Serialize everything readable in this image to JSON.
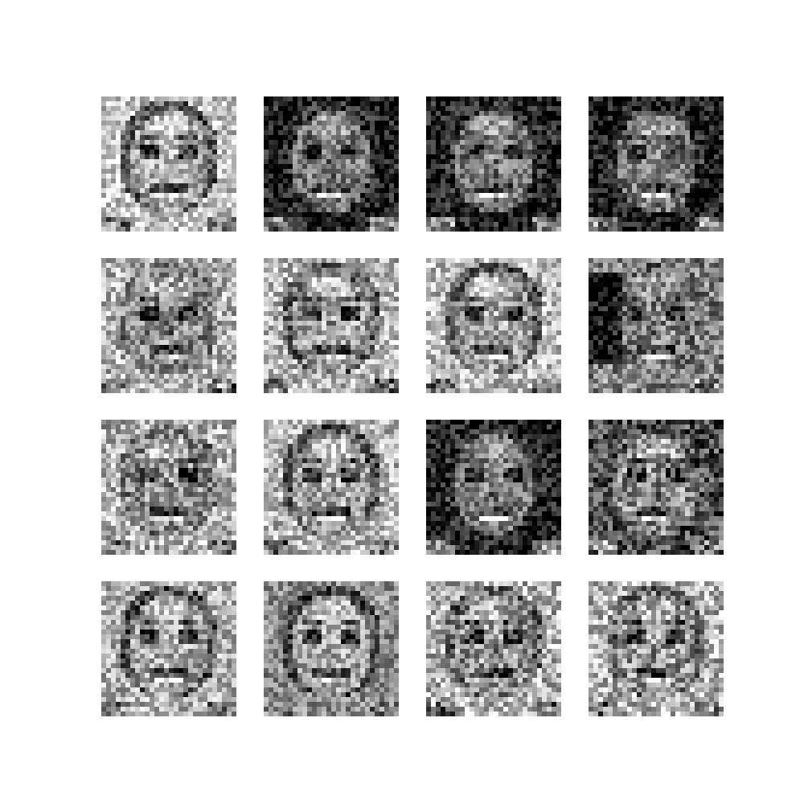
{
  "figure": {
    "background": "#ffffff",
    "grid": {
      "rows": 4,
      "cols": 4
    },
    "tile_pixels": 28,
    "colormap": "grayscale"
  },
  "samples": [
    {
      "row": 1,
      "col": 1,
      "background_tone": 0.78,
      "hair_tone": 0.28,
      "skin_tone": 0.72,
      "noise": 0.55,
      "seed": 11
    },
    {
      "row": 1,
      "col": 2,
      "background_tone": 0.12,
      "hair_tone": 0.1,
      "skin_tone": 0.55,
      "noise": 0.5,
      "seed": 23
    },
    {
      "row": 1,
      "col": 3,
      "background_tone": 0.14,
      "hair_tone": 0.1,
      "skin_tone": 0.55,
      "noise": 0.5,
      "seed": 37
    },
    {
      "row": 1,
      "col": 4,
      "background_tone": 0.1,
      "hair_tone": 0.08,
      "skin_tone": 0.55,
      "noise": 0.5,
      "seed": 41
    },
    {
      "row": 2,
      "col": 1,
      "background_tone": 0.7,
      "hair_tone": 0.45,
      "skin_tone": 0.6,
      "noise": 0.6,
      "seed": 53
    },
    {
      "row": 2,
      "col": 2,
      "background_tone": 0.72,
      "hair_tone": 0.3,
      "skin_tone": 0.7,
      "noise": 0.55,
      "seed": 67
    },
    {
      "row": 2,
      "col": 3,
      "background_tone": 0.74,
      "hair_tone": 0.3,
      "skin_tone": 0.7,
      "noise": 0.55,
      "seed": 71
    },
    {
      "row": 2,
      "col": 4,
      "background_tone": 0.5,
      "hair_tone": 0.4,
      "skin_tone": 0.55,
      "noise": 0.6,
      "seed": 83,
      "dark_left_patch": true
    },
    {
      "row": 3,
      "col": 1,
      "background_tone": 0.7,
      "hair_tone": 0.42,
      "skin_tone": 0.62,
      "noise": 0.6,
      "seed": 97
    },
    {
      "row": 3,
      "col": 2,
      "background_tone": 0.72,
      "hair_tone": 0.28,
      "skin_tone": 0.7,
      "noise": 0.55,
      "seed": 101
    },
    {
      "row": 3,
      "col": 3,
      "background_tone": 0.14,
      "hair_tone": 0.1,
      "skin_tone": 0.55,
      "noise": 0.5,
      "seed": 113
    },
    {
      "row": 3,
      "col": 4,
      "background_tone": 0.3,
      "hair_tone": 0.25,
      "skin_tone": 0.62,
      "noise": 0.65,
      "seed": 127
    },
    {
      "row": 4,
      "col": 1,
      "background_tone": 0.7,
      "hair_tone": 0.25,
      "skin_tone": 0.72,
      "noise": 0.55,
      "seed": 131
    },
    {
      "row": 4,
      "col": 2,
      "background_tone": 0.55,
      "hair_tone": 0.22,
      "skin_tone": 0.72,
      "noise": 0.5,
      "seed": 149
    },
    {
      "row": 4,
      "col": 3,
      "background_tone": 0.72,
      "hair_tone": 0.35,
      "skin_tone": 0.65,
      "noise": 0.65,
      "seed": 157
    },
    {
      "row": 4,
      "col": 4,
      "background_tone": 0.72,
      "hair_tone": 0.35,
      "skin_tone": 0.65,
      "noise": 0.65,
      "seed": 163
    }
  ]
}
